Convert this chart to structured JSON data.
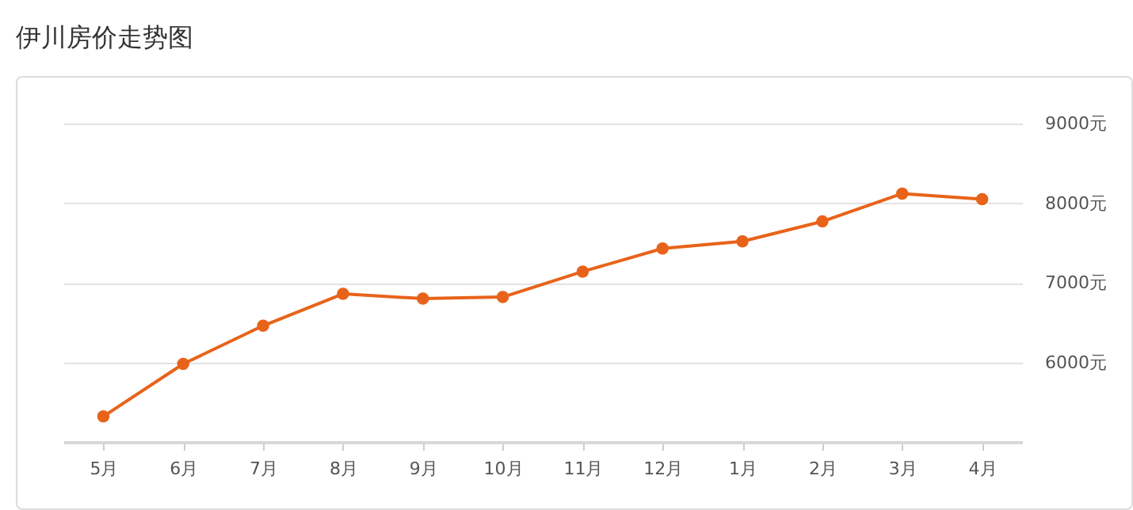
{
  "chart_data": {
    "type": "line",
    "title": "伊川房价走势图",
    "categories": [
      "5月",
      "6月",
      "7月",
      "8月",
      "9月",
      "10月",
      "11月",
      "12月",
      "1月",
      "2月",
      "3月",
      "4月"
    ],
    "series": [
      {
        "color": "#e8631a",
        "values": [
          5320,
          5980,
          6460,
          6860,
          6800,
          6820,
          7140,
          7430,
          7520,
          7770,
          8120,
          8050
        ]
      }
    ],
    "ylim": [
      5000,
      9000
    ],
    "yticks": [
      {
        "value": 6000,
        "label": "6000元"
      },
      {
        "value": 7000,
        "label": "7000元"
      },
      {
        "value": 8000,
        "label": "8000元"
      },
      {
        "value": 9000,
        "label": "9000元"
      }
    ],
    "grid": "y",
    "legend": false,
    "marker": "circle",
    "line_style": "solid"
  }
}
